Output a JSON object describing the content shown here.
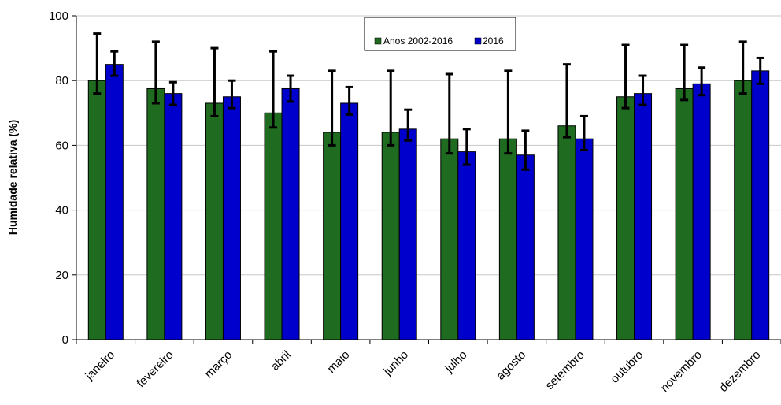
{
  "chart_data": {
    "type": "bar",
    "ylabel": "Humidade relativa (%)",
    "xlabel": "",
    "ylim": [
      0,
      100
    ],
    "yticks": [
      0,
      20,
      40,
      60,
      80,
      100
    ],
    "grid": "horizontal",
    "legend_position": "top-center",
    "categories": [
      "janeiro",
      "fevereiro",
      "março",
      "abril",
      "maio",
      "junho",
      "julho",
      "agosto",
      "setembro",
      "outubro",
      "novembro",
      "dezembro"
    ],
    "series": [
      {
        "name": "Anos 2002-2016",
        "color": "#1f6b1f",
        "values": [
          80,
          77.5,
          73,
          70,
          64,
          64,
          62,
          62,
          66,
          75,
          77.5,
          80
        ],
        "err_low": [
          76,
          73,
          69,
          65.5,
          60,
          60,
          57.5,
          57.5,
          62.5,
          71.5,
          74,
          76
        ],
        "err_high": [
          94.5,
          92,
          90,
          89,
          83,
          83,
          82,
          83,
          85,
          91,
          91,
          92
        ]
      },
      {
        "name": "2016",
        "color": "#0000cc",
        "values": [
          85,
          76,
          75,
          77.5,
          73,
          65,
          58,
          57,
          62,
          76,
          79,
          83
        ],
        "err_low": [
          81.5,
          72.5,
          71.5,
          73.5,
          69.5,
          61.5,
          54,
          52.5,
          58.5,
          72.5,
          75.5,
          79
        ],
        "err_high": [
          89,
          79.5,
          80,
          81.5,
          78,
          71,
          65,
          64.5,
          69,
          81.5,
          84,
          87
        ]
      }
    ]
  }
}
